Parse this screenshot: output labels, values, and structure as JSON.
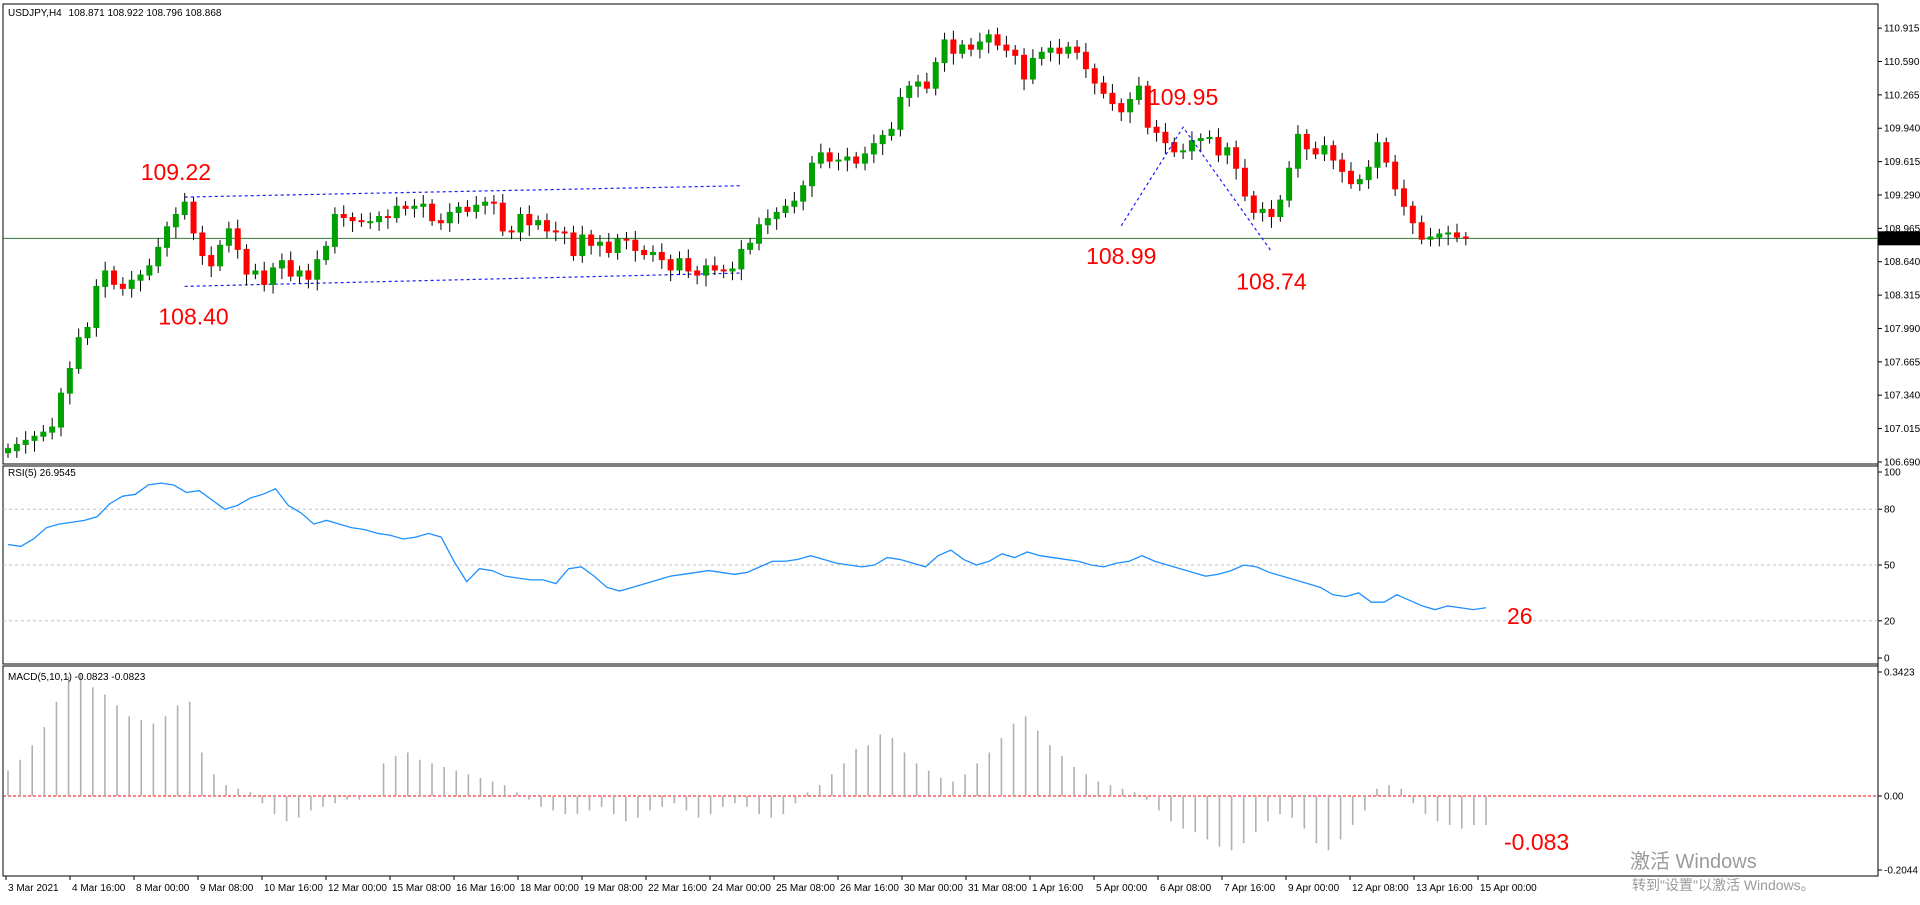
{
  "chart_data": [
    {
      "type": "candlestick",
      "header": {
        "symbol_label": "USDJPY,H4",
        "ohlc": "108.871 108.922 108.796 108.868"
      },
      "x_ticks": [
        "3 Mar 2021",
        "4 Mar 16:00",
        "8 Mar 00:00",
        "9 Mar 08:00",
        "10 Mar 16:00",
        "12 Mar 00:00",
        "15 Mar 08:00",
        "16 Mar 16:00",
        "18 Mar 00:00",
        "19 Mar 08:00",
        "22 Mar 16:00",
        "24 Mar 00:00",
        "25 Mar 08:00",
        "26 Mar 16:00",
        "30 Mar 00:00",
        "31 Mar 08:00",
        "1 Apr 16:00",
        "5 Apr 00:00",
        "6 Apr 08:00",
        "7 Apr 16:00",
        "9 Apr 00:00",
        "12 Apr 08:00",
        "13 Apr 16:00",
        "15 Apr 00:00"
      ],
      "y_ticks": [
        "110.915",
        "110.590",
        "110.265",
        "109.940",
        "109.615",
        "109.290",
        "108.965",
        "108.640",
        "108.315",
        "107.990",
        "107.665",
        "107.340",
        "107.015",
        "106.690"
      ],
      "ylim": [
        106.67,
        111.15
      ],
      "current_price": "108.868",
      "current_price_value": 108.868,
      "up_color": "#00a000",
      "down_color": "#ff0000",
      "close": [
        106.82,
        106.86,
        106.9,
        106.94,
        106.98,
        107.03,
        107.36,
        107.6,
        107.9,
        108.0,
        108.4,
        108.55,
        108.42,
        108.38,
        108.46,
        108.51,
        108.6,
        108.78,
        108.98,
        109.1,
        109.22,
        108.92,
        108.7,
        108.6,
        108.8,
        108.96,
        108.76,
        108.52,
        108.55,
        108.42,
        108.58,
        108.65,
        108.5,
        108.55,
        108.47,
        108.66,
        108.79,
        109.1,
        109.07,
        109.04,
        109.03,
        109.03,
        109.08,
        109.07,
        109.18,
        109.16,
        109.18,
        109.2,
        109.04,
        109.02,
        109.12,
        109.17,
        109.13,
        109.19,
        109.22,
        109.21,
        108.94,
        108.93,
        109.1,
        109.0,
        109.04,
        108.94,
        108.93,
        108.92,
        108.7,
        108.9,
        108.8,
        108.83,
        108.73,
        108.86,
        108.85,
        108.75,
        108.71,
        108.73,
        108.66,
        108.56,
        108.67,
        108.55,
        108.51,
        108.6,
        108.56,
        108.55,
        108.57,
        108.76,
        108.82,
        109.0,
        109.06,
        109.12,
        109.18,
        109.23,
        109.38,
        109.6,
        109.7,
        109.62,
        109.63,
        109.66,
        109.6,
        109.69,
        109.79,
        109.87,
        109.93,
        110.24,
        110.35,
        110.39,
        110.33,
        110.58,
        110.8,
        110.67,
        110.75,
        110.71,
        110.78,
        110.85,
        110.75,
        110.7,
        110.65,
        110.42,
        110.62,
        110.68,
        110.72,
        110.67,
        110.73,
        110.68,
        110.52,
        110.38,
        110.28,
        110.18,
        110.1,
        110.22,
        110.35,
        109.95,
        109.9,
        109.8,
        109.71,
        109.72,
        109.82,
        109.84,
        109.85,
        109.68,
        109.75,
        109.55,
        109.28,
        109.12,
        109.15,
        109.08,
        109.24,
        109.55,
        109.88,
        109.74,
        109.69,
        109.77,
        109.63,
        109.52,
        109.4,
        109.44,
        109.56,
        109.8,
        109.61,
        109.35,
        109.18,
        109.02,
        108.86,
        108.88,
        108.91,
        108.92,
        108.88,
        108.87
      ],
      "open": [
        106.78,
        106.8,
        106.86,
        106.9,
        106.94,
        106.98,
        107.03,
        107.36,
        107.6,
        107.9,
        108.0,
        108.4,
        108.55,
        108.42,
        108.38,
        108.46,
        108.51,
        108.6,
        108.78,
        108.98,
        109.1,
        109.22,
        108.92,
        108.7,
        108.6,
        108.8,
        108.96,
        108.76,
        108.52,
        108.55,
        108.42,
        108.58,
        108.65,
        108.5,
        108.55,
        108.47,
        108.66,
        108.79,
        109.1,
        109.07,
        109.04,
        109.03,
        109.03,
        109.08,
        109.07,
        109.18,
        109.16,
        109.18,
        109.2,
        109.04,
        109.02,
        109.12,
        109.17,
        109.13,
        109.19,
        109.22,
        109.21,
        108.94,
        108.93,
        109.1,
        109.0,
        109.04,
        108.94,
        108.93,
        108.92,
        108.7,
        108.9,
        108.8,
        108.83,
        108.73,
        108.86,
        108.85,
        108.75,
        108.71,
        108.73,
        108.66,
        108.56,
        108.67,
        108.55,
        108.51,
        108.6,
        108.56,
        108.55,
        108.57,
        108.76,
        108.82,
        109.0,
        109.06,
        109.12,
        109.18,
        109.23,
        109.38,
        109.6,
        109.7,
        109.62,
        109.63,
        109.66,
        109.6,
        109.69,
        109.79,
        109.87,
        109.93,
        110.24,
        110.35,
        110.39,
        110.33,
        110.58,
        110.8,
        110.67,
        110.75,
        110.71,
        110.78,
        110.85,
        110.75,
        110.7,
        110.65,
        110.42,
        110.62,
        110.68,
        110.72,
        110.67,
        110.73,
        110.68,
        110.52,
        110.38,
        110.28,
        110.18,
        110.1,
        110.22,
        110.35,
        109.95,
        109.9,
        109.8,
        109.71,
        109.72,
        109.82,
        109.84,
        109.85,
        109.68,
        109.75,
        109.55,
        109.28,
        109.12,
        109.15,
        109.08,
        109.24,
        109.55,
        109.88,
        109.74,
        109.69,
        109.77,
        109.63,
        109.52,
        109.4,
        109.44,
        109.56,
        109.8,
        109.61,
        109.35,
        109.18,
        109.02,
        108.86,
        108.88,
        108.91,
        108.92,
        108.88
      ],
      "channel_lines": [
        {
          "p1": [
            20,
            109.27
          ],
          "p2": [
            83,
            109.38
          ]
        },
        {
          "p1": [
            20,
            108.4
          ],
          "p2": [
            83,
            108.53
          ]
        }
      ],
      "zigzag": [
        [
          126,
          108.99
        ],
        [
          133,
          109.95
        ],
        [
          143,
          108.74
        ]
      ],
      "annotations": [
        {
          "text": "109.22",
          "x": 19,
          "y": 109.22,
          "pos": "above"
        },
        {
          "text": "108.40",
          "x": 21,
          "y": 108.4,
          "pos": "below"
        },
        {
          "text": "109.95",
          "x": 133,
          "y": 109.95,
          "pos": "above"
        },
        {
          "text": "108.99",
          "x": 126,
          "y": 108.99,
          "pos": "below"
        },
        {
          "text": "108.74",
          "x": 143,
          "y": 108.74,
          "pos": "below"
        }
      ]
    },
    {
      "type": "line",
      "title": "RSI(5) 26.9545",
      "y_ticks": [
        "100",
        "80",
        "50",
        "20",
        "0"
      ],
      "levels": [
        80,
        50,
        20
      ],
      "ylim": [
        0,
        100
      ],
      "values": [
        61,
        60,
        64,
        70,
        72,
        73,
        74,
        76,
        83,
        87,
        88,
        93,
        94,
        93,
        89,
        90,
        85,
        80,
        82,
        86,
        88,
        91,
        82,
        78,
        72,
        74,
        72,
        70,
        69,
        67,
        66,
        64,
        65,
        67,
        65,
        52,
        41,
        48,
        47,
        44,
        43,
        42,
        42,
        40,
        48,
        49,
        44,
        38,
        36,
        38,
        40,
        42,
        44,
        45,
        46,
        47,
        46,
        45,
        46,
        49,
        52,
        52,
        53,
        55,
        53,
        51,
        50,
        49,
        50,
        54,
        53,
        51,
        49,
        55,
        58,
        53,
        50,
        52,
        56,
        54,
        57,
        55,
        54,
        53,
        52,
        50,
        49,
        51,
        52,
        55,
        52,
        50,
        48,
        46,
        44,
        45,
        47,
        50,
        49,
        46,
        44,
        42,
        40,
        38,
        34,
        33,
        35,
        30,
        30,
        34,
        31,
        28,
        26,
        28,
        27,
        26,
        27
      ],
      "annotation": "26"
    },
    {
      "type": "bar",
      "title": "MACD(5,10,1) -0.0823 -0.0823",
      "y_ticks": [
        "0.3423",
        "0.00",
        "-0.2044"
      ],
      "ylim": [
        -0.2044,
        0.3423
      ],
      "zero_level": 0,
      "values": [
        0.07,
        0.1,
        0.14,
        0.19,
        0.26,
        0.33,
        0.34,
        0.3,
        0.28,
        0.25,
        0.22,
        0.21,
        0.2,
        0.22,
        0.25,
        0.26,
        0.12,
        0.06,
        0.03,
        0.02,
        0.01,
        -0.02,
        -0.05,
        -0.07,
        -0.06,
        -0.04,
        -0.03,
        -0.02,
        -0.01,
        -0.01,
        0.0,
        0.09,
        0.11,
        0.12,
        0.1,
        0.09,
        0.08,
        0.07,
        0.06,
        0.05,
        0.04,
        0.03,
        0.01,
        -0.01,
        -0.03,
        -0.04,
        -0.05,
        -0.05,
        -0.04,
        -0.03,
        -0.05,
        -0.07,
        -0.06,
        -0.04,
        -0.03,
        -0.02,
        -0.04,
        -0.06,
        -0.05,
        -0.03,
        -0.02,
        -0.03,
        -0.05,
        -0.06,
        -0.05,
        -0.02,
        0.01,
        0.03,
        0.06,
        0.09,
        0.13,
        0.14,
        0.17,
        0.16,
        0.12,
        0.09,
        0.07,
        0.05,
        0.04,
        0.06,
        0.09,
        0.12,
        0.16,
        0.2,
        0.22,
        0.18,
        0.14,
        0.11,
        0.08,
        0.06,
        0.04,
        0.03,
        0.02,
        0.01,
        -0.01,
        -0.04,
        -0.07,
        -0.09,
        -0.1,
        -0.12,
        -0.14,
        -0.15,
        -0.13,
        -0.1,
        -0.07,
        -0.05,
        -0.06,
        -0.09,
        -0.13,
        -0.15,
        -0.12,
        -0.08,
        -0.04,
        0.02,
        0.03,
        0.02,
        -0.02,
        -0.05,
        -0.07,
        -0.08,
        -0.09,
        -0.08,
        -0.08
      ],
      "annotation": "-0.083"
    }
  ],
  "watermark": {
    "line1": "激活 Windows",
    "line2": "转到\"设置\"以激活 Windows。"
  }
}
